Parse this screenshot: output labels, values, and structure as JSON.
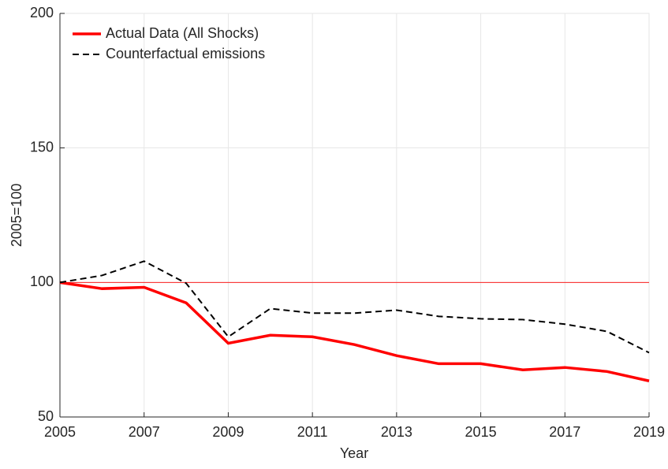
{
  "chart_data": {
    "type": "line",
    "x": [
      2005,
      2006,
      2007,
      2008,
      2009,
      2010,
      2011,
      2012,
      2013,
      2014,
      2015,
      2016,
      2017,
      2018,
      2019
    ],
    "series": [
      {
        "name": "Actual Data (All Shocks)",
        "color": "#ff0000",
        "dash": "solid",
        "values": [
          100,
          97.7,
          98.2,
          92.4,
          77.4,
          80.4,
          79.8,
          76.9,
          72.8,
          69.8,
          69.8,
          67.5,
          68.4,
          66.9,
          63.4
        ]
      },
      {
        "name": "Counterfactual emissions",
        "color": "#000000",
        "dash": "dashed",
        "values": [
          100,
          102.6,
          107.9,
          99.7,
          79.8,
          90.3,
          88.6,
          88.6,
          89.7,
          87.4,
          86.5,
          86.2,
          84.5,
          81.8,
          73.9
        ]
      }
    ],
    "reference_line": 100,
    "reference_color": "#ff0000",
    "xlabel": "Year",
    "ylabel": "2005=100",
    "xlim": [
      2005,
      2019
    ],
    "xticks": [
      2005,
      2007,
      2009,
      2011,
      2013,
      2015,
      2017,
      2019
    ],
    "ylim": [
      50,
      200
    ],
    "yticks": [
      50,
      100,
      150,
      200
    ],
    "grid": true,
    "legend": "upper-left"
  }
}
